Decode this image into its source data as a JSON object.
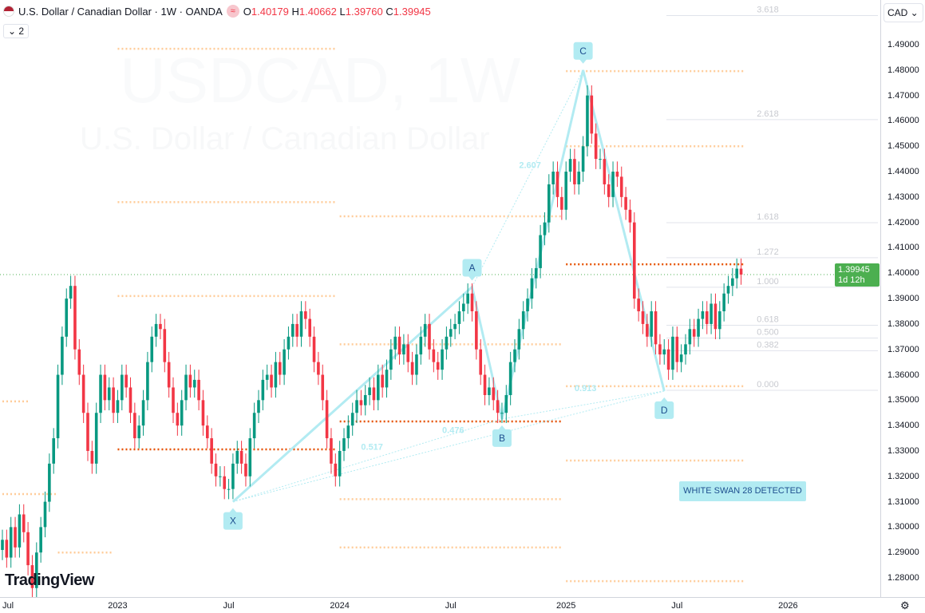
{
  "header": {
    "title": "U.S. Dollar / Canadian Dollar · 1W · OANDA",
    "approx": "≈",
    "o_label": "O",
    "o": "1.40179",
    "h_label": "H",
    "h": "1.40662",
    "l_label": "L",
    "l": "1.39760",
    "c_label": "C",
    "c": "1.39945",
    "indicators_toggle": "⌄ 2"
  },
  "currency": "CAD ⌄",
  "price_tag": {
    "price": "1.39945",
    "countdown": "1d 12h"
  },
  "watermark": {
    "symbol": "USDCAD, 1W",
    "name": "U.S. Dollar / Canadian Dollar"
  },
  "logo": "TradingView",
  "signal_label": "WHITE SWAN 28 DETECTED",
  "colors": {
    "up": "#089981",
    "down": "#f23645",
    "pattern": "#b2ebf2",
    "fib_orange": "#ffcc99",
    "level_red": "#e65100"
  },
  "chart_data": {
    "type": "candlestick",
    "title": "U.S. Dollar / Canadian Dollar · 1W · OANDA",
    "ylim": [
      1.27,
      1.505
    ],
    "y_ticks": [
      "1.49000",
      "1.48000",
      "1.47000",
      "1.46000",
      "1.45000",
      "1.44000",
      "1.43000",
      "1.42000",
      "1.41000",
      "1.40000",
      "1.39000",
      "1.38000",
      "1.37000",
      "1.36000",
      "1.35000",
      "1.34000",
      "1.33000",
      "1.32000",
      "1.31000",
      "1.30000",
      "1.29000",
      "1.28000"
    ],
    "x_ticks": [
      {
        "label": "Jul",
        "week": -1
      },
      {
        "label": "2023",
        "week": 27
      },
      {
        "label": "Jul",
        "week": 53
      },
      {
        "label": "2024",
        "week": 79
      },
      {
        "label": "Jul",
        "week": 105
      },
      {
        "label": "2025",
        "week": 132
      },
      {
        "label": "Jul",
        "week": 158
      },
      {
        "label": "2026",
        "week": 184
      }
    ],
    "closes": [
      1.295,
      1.288,
      1.3,
      1.292,
      1.305,
      1.298,
      1.285,
      1.276,
      1.29,
      1.3,
      1.31,
      1.325,
      1.335,
      1.36,
      1.375,
      1.39,
      1.395,
      1.37,
      1.36,
      1.345,
      1.33,
      1.325,
      1.345,
      1.36,
      1.35,
      1.355,
      1.345,
      1.35,
      1.36,
      1.355,
      1.345,
      1.335,
      1.34,
      1.35,
      1.365,
      1.375,
      1.38,
      1.378,
      1.365,
      1.355,
      1.345,
      1.34,
      1.35,
      1.36,
      1.355,
      1.358,
      1.35,
      1.34,
      1.335,
      1.325,
      1.32,
      1.32,
      1.315,
      1.315,
      1.325,
      1.33,
      1.325,
      1.32,
      1.335,
      1.345,
      1.35,
      1.358,
      1.36,
      1.355,
      1.365,
      1.36,
      1.37,
      1.375,
      1.38,
      1.375,
      1.385,
      1.382,
      1.375,
      1.365,
      1.36,
      1.35,
      1.335,
      1.325,
      1.32,
      1.33,
      1.335,
      1.34,
      1.345,
      1.35,
      1.348,
      1.352,
      1.355,
      1.35,
      1.36,
      1.355,
      1.362,
      1.37,
      1.375,
      1.368,
      1.372,
      1.365,
      1.36,
      1.368,
      1.375,
      1.38,
      1.37,
      1.365,
      1.362,
      1.37,
      1.375,
      1.378,
      1.38,
      1.385,
      1.388,
      1.392,
      1.385,
      1.37,
      1.36,
      1.352,
      1.355,
      1.35,
      1.345,
      1.345,
      1.352,
      1.365,
      1.37,
      1.378,
      1.385,
      1.39,
      1.398,
      1.402,
      1.415,
      1.42,
      1.435,
      1.44,
      1.43,
      1.425,
      1.44,
      1.445,
      1.435,
      1.44,
      1.45,
      1.47,
      1.455,
      1.445,
      1.445,
      1.435,
      1.43,
      1.44,
      1.438,
      1.43,
      1.425,
      1.42,
      1.39,
      1.385,
      1.38,
      1.375,
      1.385,
      1.372,
      1.368,
      1.37,
      1.362,
      1.375,
      1.365,
      1.368,
      1.372,
      1.378,
      1.375,
      1.382,
      1.385,
      1.38,
      1.388,
      1.378,
      1.385,
      1.392,
      1.395,
      1.398,
      1.4018,
      1.39945
    ],
    "last_price": 1.39945,
    "pattern": {
      "points": [
        {
          "label": "X",
          "week": 54,
          "price": 1.31,
          "pos": "below"
        },
        {
          "label": "A",
          "week": 110,
          "price": 1.3946,
          "pos": "above"
        },
        {
          "label": "B",
          "week": 117,
          "price": 1.3426,
          "pos": "below"
        },
        {
          "label": "C",
          "week": 136,
          "price": 1.48,
          "pos": "above"
        },
        {
          "label": "D",
          "week": 155,
          "price": 1.3536,
          "pos": "below"
        }
      ],
      "ratios": [
        {
          "text": "2.607",
          "week": 121,
          "price": 1.4415
        },
        {
          "text": "0.913",
          "week": 134,
          "price": 1.3536
        },
        {
          "text": "0.476",
          "week": 103,
          "price": 1.337
        },
        {
          "text": "0.517",
          "week": 84,
          "price": 1.3305
        }
      ]
    },
    "fib_levels": [
      {
        "label": "3.618",
        "price": 1.504
      },
      {
        "label": "2.618",
        "price": 1.463
      },
      {
        "label": "1.618",
        "price": 1.4224
      },
      {
        "label": "1.272",
        "price": 1.4086
      },
      {
        "label": "1.000",
        "price": 1.397
      },
      {
        "label": "0.618",
        "price": 1.382
      },
      {
        "label": "0.500",
        "price": 1.377
      },
      {
        "label": "0.382",
        "price": 1.372
      },
      {
        "label": "0.000",
        "price": 1.3564
      }
    ],
    "levels": [
      {
        "from": 27,
        "to": 78,
        "price": 1.4884,
        "kind": "fib"
      },
      {
        "from": 27,
        "to": 78,
        "price": 1.428,
        "kind": "fib"
      },
      {
        "from": 27,
        "to": 78,
        "price": 1.391,
        "kind": "fib"
      },
      {
        "from": 27,
        "to": 78,
        "price": 1.3306,
        "kind": "key"
      },
      {
        "from": 0,
        "to": 6,
        "price": 1.3495,
        "kind": "fib"
      },
      {
        "from": 0,
        "to": 13,
        "price": 1.313,
        "kind": "fib"
      },
      {
        "from": 13,
        "to": 26,
        "price": 1.29,
        "kind": "fib"
      },
      {
        "from": 79,
        "to": 131,
        "price": 1.4224,
        "kind": "fib"
      },
      {
        "from": 79,
        "to": 131,
        "price": 1.372,
        "kind": "fib"
      },
      {
        "from": 79,
        "to": 131,
        "price": 1.311,
        "kind": "fib"
      },
      {
        "from": 79,
        "to": 131,
        "price": 1.292,
        "kind": "fib"
      },
      {
        "from": 79,
        "to": 131,
        "price": 1.3416,
        "kind": "key"
      },
      {
        "from": 132,
        "to": 174,
        "price": 1.4796,
        "kind": "fib"
      },
      {
        "from": 132,
        "to": 174,
        "price": 1.45,
        "kind": "fib"
      },
      {
        "from": 132,
        "to": 174,
        "price": 1.3555,
        "kind": "fib"
      },
      {
        "from": 132,
        "to": 174,
        "price": 1.3262,
        "kind": "fib"
      },
      {
        "from": 132,
        "to": 174,
        "price": 1.2787,
        "kind": "fib"
      },
      {
        "from": 132,
        "to": 174,
        "price": 1.4035,
        "kind": "key"
      }
    ]
  }
}
